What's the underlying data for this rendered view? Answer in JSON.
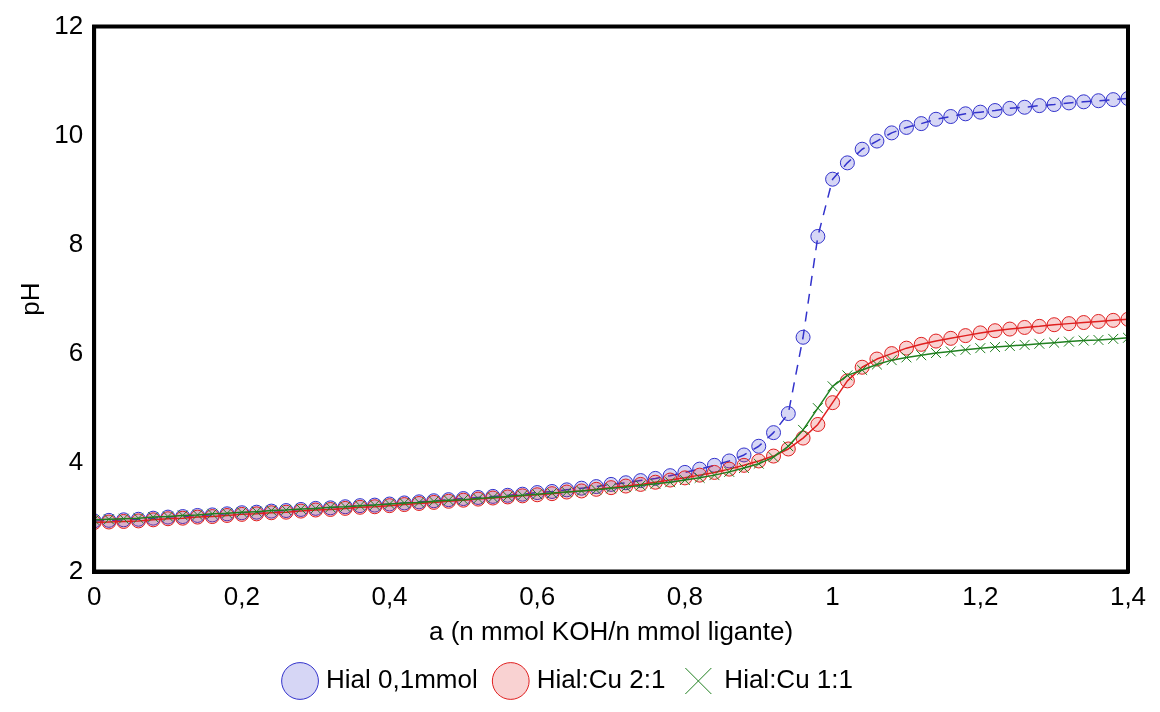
{
  "chart_data": {
    "type": "line",
    "xlabel": "a (n mmol KOH/n mmol ligante)",
    "ylabel": "pH",
    "x": [
      0,
      0.02,
      0.04,
      0.06,
      0.08,
      0.1,
      0.12,
      0.14,
      0.16,
      0.18,
      0.2,
      0.22,
      0.24,
      0.26,
      0.28,
      0.3,
      0.32,
      0.34,
      0.36,
      0.38,
      0.4,
      0.42,
      0.44,
      0.46,
      0.48,
      0.5,
      0.52,
      0.54,
      0.56,
      0.58,
      0.6,
      0.62,
      0.64,
      0.66,
      0.68,
      0.7,
      0.72,
      0.74,
      0.76,
      0.78,
      0.8,
      0.82,
      0.84,
      0.86,
      0.88,
      0.9,
      0.92,
      0.94,
      0.96,
      0.98,
      1.0,
      1.02,
      1.04,
      1.06,
      1.08,
      1.1,
      1.12,
      1.14,
      1.16,
      1.18,
      1.2,
      1.22,
      1.24,
      1.26,
      1.28,
      1.3,
      1.32,
      1.34,
      1.36,
      1.38,
      1.4
    ],
    "series": [
      {
        "name": "Hial 0,1mmol",
        "color": "#3333cc",
        "marker": "circle",
        "line_style": "dashed",
        "values": [
          2.93,
          2.94,
          2.95,
          2.96,
          2.98,
          3.0,
          3.01,
          3.03,
          3.04,
          3.06,
          3.08,
          3.09,
          3.11,
          3.12,
          3.14,
          3.16,
          3.17,
          3.19,
          3.21,
          3.22,
          3.24,
          3.26,
          3.28,
          3.3,
          3.32,
          3.34,
          3.36,
          3.38,
          3.4,
          3.42,
          3.45,
          3.47,
          3.5,
          3.53,
          3.56,
          3.6,
          3.63,
          3.67,
          3.71,
          3.76,
          3.82,
          3.88,
          3.95,
          4.03,
          4.14,
          4.3,
          4.55,
          4.9,
          6.3,
          8.15,
          9.2,
          9.5,
          9.75,
          9.9,
          10.05,
          10.15,
          10.22,
          10.3,
          10.35,
          10.4,
          10.43,
          10.46,
          10.5,
          10.52,
          10.55,
          10.57,
          10.6,
          10.62,
          10.64,
          10.66,
          10.68
        ]
      },
      {
        "name": "Hial:Cu 2:1",
        "color": "#e02020",
        "marker": "circle",
        "line_style": "solid",
        "values": [
          2.9,
          2.91,
          2.92,
          2.93,
          2.95,
          2.97,
          2.98,
          3.0,
          3.01,
          3.03,
          3.05,
          3.06,
          3.08,
          3.09,
          3.11,
          3.13,
          3.14,
          3.16,
          3.18,
          3.19,
          3.21,
          3.23,
          3.25,
          3.27,
          3.29,
          3.31,
          3.33,
          3.35,
          3.37,
          3.39,
          3.41,
          3.43,
          3.46,
          3.48,
          3.51,
          3.54,
          3.57,
          3.6,
          3.64,
          3.68,
          3.72,
          3.77,
          3.82,
          3.88,
          3.95,
          4.03,
          4.12,
          4.25,
          4.45,
          4.7,
          5.1,
          5.5,
          5.75,
          5.9,
          6.0,
          6.1,
          6.17,
          6.23,
          6.28,
          6.33,
          6.38,
          6.42,
          6.45,
          6.48,
          6.5,
          6.53,
          6.55,
          6.57,
          6.59,
          6.61,
          6.63
        ]
      },
      {
        "name": "Hial:Cu 1:1",
        "color": "#208020",
        "marker": "cross",
        "line_style": "solid",
        "values": [
          2.95,
          2.96,
          2.97,
          2.98,
          3.0,
          3.01,
          3.03,
          3.04,
          3.06,
          3.07,
          3.09,
          3.1,
          3.12,
          3.13,
          3.15,
          3.16,
          3.18,
          3.19,
          3.21,
          3.22,
          3.24,
          3.26,
          3.27,
          3.29,
          3.31,
          3.32,
          3.34,
          3.36,
          3.38,
          3.4,
          3.42,
          3.44,
          3.46,
          3.48,
          3.5,
          3.53,
          3.55,
          3.58,
          3.61,
          3.64,
          3.68,
          3.72,
          3.77,
          3.83,
          3.9,
          3.98,
          4.1,
          4.3,
          4.6,
          5.0,
          5.4,
          5.6,
          5.7,
          5.8,
          5.88,
          5.93,
          5.97,
          6.01,
          6.04,
          6.07,
          6.1,
          6.12,
          6.14,
          6.16,
          6.18,
          6.2,
          6.22,
          6.24,
          6.25,
          6.27,
          6.29
        ]
      }
    ],
    "xlim": [
      0,
      1.4
    ],
    "xticks": [
      0,
      {
        "value": 0.2,
        "label": "0,2"
      },
      {
        "value": 0.4,
        "label": "0,4"
      },
      {
        "value": 0.6,
        "label": "0,6"
      },
      {
        "value": 0.8,
        "label": "0,8"
      },
      1,
      {
        "value": 1.2,
        "label": "1,2"
      },
      {
        "value": 1.4,
        "label": "1,4"
      }
    ],
    "ylim": [
      2,
      12
    ],
    "yticks": [
      2,
      4,
      6,
      8,
      10,
      12
    ],
    "grid": false,
    "legend": "bottom"
  }
}
